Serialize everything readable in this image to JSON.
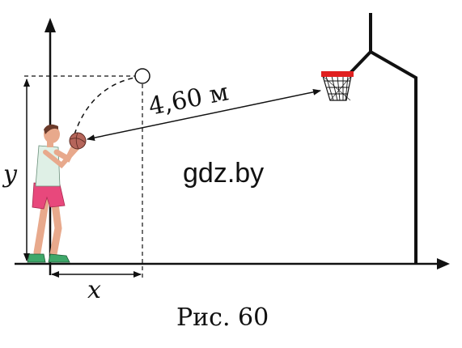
{
  "diagram": {
    "distance_label": "4,60 м",
    "axis_y_label": "y",
    "axis_x_label": "x",
    "watermark": "gdz.by",
    "caption": "Рис. 60",
    "colors": {
      "ink": "#111111",
      "rim": "#e02020",
      "shorts": "#e8487c",
      "skin": "#e8a98c",
      "shirt": "#dff0e6",
      "ball": "#b5655a",
      "shoes": "#3fa86a",
      "hair": "#6b3a2a"
    }
  }
}
